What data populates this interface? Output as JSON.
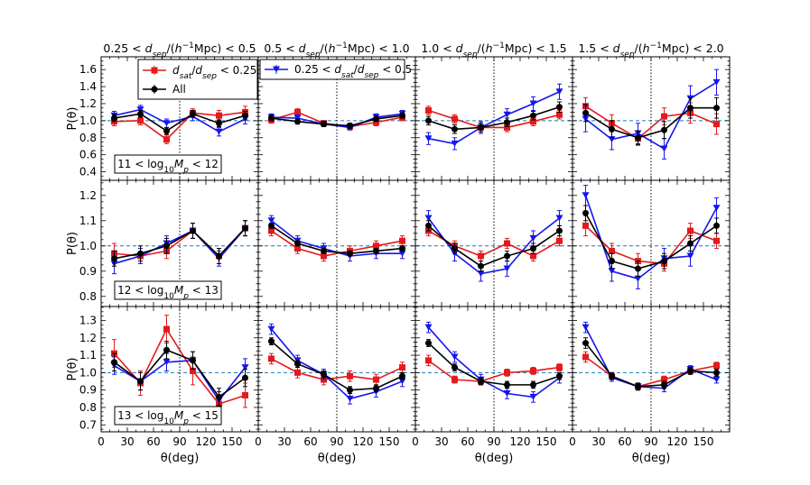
{
  "chart_data": {
    "type": "line",
    "ylabel": "P(θ)",
    "xlabel": "θ(deg)",
    "x": [
      15,
      45,
      75,
      105,
      135,
      165
    ],
    "xlim": [
      0,
      180
    ],
    "xticks": [
      0,
      30,
      60,
      90,
      120,
      150
    ],
    "vline_x": 90,
    "hline_y": 1.0,
    "grid": false,
    "legend": {
      "placement": "top-left",
      "entries": [
        {
          "series": "red",
          "text": "d_sat/d_sep < 0.25",
          "panel": 0
        },
        {
          "series": "black",
          "text": "All",
          "panel": 0
        },
        {
          "series": "blue",
          "text": "0.25 < d_sat/d_sep < 0.5",
          "panel": 1
        }
      ]
    },
    "colors": {
      "red": "#e41a1c",
      "black": "#000000",
      "blue": "#1515f0",
      "hline": "#1f77b4"
    },
    "columns": [
      "0.25 < d_sep/(h⁻¹Mpc) < 0.5",
      "0.5 < d_sep/(h⁻¹Mpc) < 1.0",
      "1.0 < d_sep/(h⁻¹Mpc) < 1.5",
      "1.5 < d_sep/(h⁻¹Mpc) < 2.0"
    ],
    "rows": [
      {
        "label": "11 < log10 Mp < 12",
        "ylim": [
          0.3,
          1.75
        ],
        "yticks": [
          0.4,
          0.6,
          0.8,
          1.0,
          1.2,
          1.4,
          1.6
        ],
        "panels": [
          {
            "red": [
              0.99,
              1.0,
              0.78,
              1.09,
              1.06,
              1.1
            ],
            "red_err": [
              0.05,
              0.05,
              0.05,
              0.05,
              0.06,
              0.07
            ],
            "black": [
              1.03,
              1.08,
              0.88,
              1.08,
              0.97,
              1.06
            ],
            "black_err": [
              0.04,
              0.04,
              0.04,
              0.04,
              0.04,
              0.05
            ],
            "blue": [
              1.06,
              1.13,
              0.97,
              1.05,
              0.87,
              1.02
            ],
            "blue_err": [
              0.05,
              0.05,
              0.05,
              0.05,
              0.05,
              0.06
            ]
          },
          {
            "red": [
              1.01,
              1.1,
              0.97,
              0.93,
              0.98,
              1.04
            ],
            "red_err": [
              0.04,
              0.04,
              0.03,
              0.03,
              0.04,
              0.04
            ],
            "black": [
              1.03,
              0.99,
              0.96,
              0.94,
              1.02,
              1.06
            ],
            "black_err": [
              0.03,
              0.03,
              0.03,
              0.03,
              0.03,
              0.03
            ],
            "blue": [
              1.04,
              1.03,
              0.96,
              0.92,
              1.04,
              1.08
            ],
            "blue_err": [
              0.04,
              0.04,
              0.03,
              0.03,
              0.04,
              0.04
            ]
          },
          {
            "red": [
              1.12,
              1.02,
              0.92,
              0.92,
              0.99,
              1.07
            ],
            "red_err": [
              0.05,
              0.05,
              0.05,
              0.05,
              0.05,
              0.05
            ],
            "black": [
              1.0,
              0.9,
              0.92,
              0.98,
              1.06,
              1.16
            ],
            "black_err": [
              0.05,
              0.05,
              0.05,
              0.05,
              0.05,
              0.06
            ],
            "blue": [
              0.79,
              0.73,
              0.92,
              1.07,
              1.2,
              1.34
            ],
            "blue_err": [
              0.07,
              0.07,
              0.07,
              0.07,
              0.08,
              0.09
            ]
          },
          {
            "red": [
              1.17,
              0.97,
              0.79,
              1.05,
              1.09,
              0.96
            ],
            "red_err": [
              0.1,
              0.1,
              0.08,
              0.1,
              0.12,
              0.12
            ],
            "black": [
              1.09,
              0.9,
              0.8,
              0.89,
              1.15,
              1.15
            ],
            "black_err": [
              0.1,
              0.1,
              0.08,
              0.1,
              0.12,
              0.12
            ],
            "blue": [
              1.02,
              0.78,
              0.85,
              0.67,
              1.26,
              1.45
            ],
            "blue_err": [
              0.15,
              0.12,
              0.12,
              0.12,
              0.15,
              0.15
            ]
          }
        ]
      },
      {
        "label": "12 < log10 Mp < 13",
        "ylim": [
          0.76,
          1.26
        ],
        "yticks": [
          0.8,
          0.9,
          1.0,
          1.1,
          1.2
        ],
        "panels": [
          {
            "red": [
              0.97,
              0.96,
              0.98,
              1.06,
              0.96,
              1.07
            ],
            "red_err": [
              0.04,
              0.03,
              0.03,
              0.03,
              0.03,
              0.03
            ],
            "black": [
              0.95,
              0.97,
              1.0,
              1.06,
              0.96,
              1.07
            ],
            "black_err": [
              0.03,
              0.03,
              0.03,
              0.03,
              0.03,
              0.03
            ],
            "blue": [
              0.93,
              0.96,
              1.01,
              1.06,
              0.95,
              1.07
            ],
            "blue_err": [
              0.04,
              0.03,
              0.03,
              0.03,
              0.03,
              0.03
            ]
          },
          {
            "red": [
              1.06,
              0.99,
              0.96,
              0.98,
              1.0,
              1.02
            ],
            "red_err": [
              0.02,
              0.02,
              0.02,
              0.02,
              0.02,
              0.02
            ],
            "black": [
              1.08,
              1.01,
              0.98,
              0.97,
              0.98,
              0.99
            ],
            "black_err": [
              0.01,
              0.01,
              0.01,
              0.01,
              0.01,
              0.01
            ],
            "blue": [
              1.1,
              1.02,
              0.99,
              0.96,
              0.97,
              0.97
            ],
            "blue_err": [
              0.02,
              0.02,
              0.02,
              0.02,
              0.02,
              0.02
            ]
          },
          {
            "red": [
              1.06,
              1.0,
              0.96,
              1.01,
              0.96,
              1.02
            ],
            "red_err": [
              0.02,
              0.02,
              0.02,
              0.02,
              0.02,
              0.02
            ],
            "black": [
              1.08,
              0.99,
              0.92,
              0.96,
              0.99,
              1.06
            ],
            "black_err": [
              0.02,
              0.02,
              0.02,
              0.02,
              0.02,
              0.02
            ],
            "blue": [
              1.11,
              0.97,
              0.89,
              0.91,
              1.03,
              1.11
            ],
            "blue_err": [
              0.03,
              0.03,
              0.03,
              0.03,
              0.03,
              0.03
            ]
          },
          {
            "red": [
              1.08,
              0.98,
              0.94,
              0.93,
              1.06,
              1.02
            ],
            "red_err": [
              0.04,
              0.03,
              0.03,
              0.03,
              0.03,
              0.03
            ],
            "black": [
              1.13,
              0.94,
              0.91,
              0.94,
              1.01,
              1.08
            ],
            "black_err": [
              0.03,
              0.03,
              0.03,
              0.03,
              0.03,
              0.03
            ],
            "blue": [
              1.2,
              0.9,
              0.87,
              0.95,
              0.96,
              1.15
            ],
            "blue_err": [
              0.04,
              0.04,
              0.04,
              0.04,
              0.04,
              0.04
            ]
          }
        ]
      },
      {
        "label": "13 < log10 Mp < 15",
        "ylim": [
          0.66,
          1.38
        ],
        "yticks": [
          0.7,
          0.8,
          0.9,
          1.0,
          1.1,
          1.2,
          1.3
        ],
        "panels": [
          {
            "red": [
              1.11,
              0.94,
              1.25,
              1.01,
              0.82,
              0.87
            ],
            "red_err": [
              0.08,
              0.07,
              0.08,
              0.08,
              0.07,
              0.07
            ],
            "black": [
              1.06,
              0.95,
              1.13,
              1.07,
              0.86,
              0.97
            ],
            "black_err": [
              0.05,
              0.05,
              0.05,
              0.05,
              0.05,
              0.05
            ],
            "blue": [
              1.04,
              0.95,
              1.06,
              1.07,
              0.84,
              1.03
            ],
            "blue_err": [
              0.05,
              0.05,
              0.05,
              0.05,
              0.05,
              0.05
            ]
          },
          {
            "red": [
              1.08,
              1.0,
              0.96,
              0.98,
              0.96,
              1.03
            ],
            "red_err": [
              0.03,
              0.03,
              0.03,
              0.03,
              0.03,
              0.03
            ],
            "black": [
              1.18,
              1.05,
              0.99,
              0.9,
              0.91,
              0.98
            ],
            "black_err": [
              0.02,
              0.02,
              0.02,
              0.02,
              0.02,
              0.02
            ],
            "blue": [
              1.25,
              1.07,
              0.99,
              0.85,
              0.89,
              0.95
            ],
            "blue_err": [
              0.03,
              0.03,
              0.03,
              0.03,
              0.03,
              0.03
            ]
          },
          {
            "red": [
              1.07,
              0.96,
              0.95,
              1.0,
              1.01,
              1.03
            ],
            "red_err": [
              0.03,
              0.02,
              0.02,
              0.02,
              0.02,
              0.02
            ],
            "black": [
              1.17,
              1.03,
              0.95,
              0.93,
              0.93,
              0.98
            ],
            "black_err": [
              0.02,
              0.02,
              0.02,
              0.02,
              0.02,
              0.02
            ],
            "blue": [
              1.26,
              1.09,
              0.96,
              0.88,
              0.86,
              0.97
            ],
            "blue_err": [
              0.03,
              0.03,
              0.03,
              0.03,
              0.03,
              0.03
            ]
          },
          {
            "red": [
              1.09,
              0.98,
              0.92,
              0.96,
              1.01,
              1.04
            ],
            "red_err": [
              0.03,
              0.02,
              0.02,
              0.02,
              0.02,
              0.02
            ],
            "black": [
              1.17,
              0.98,
              0.92,
              0.93,
              1.01,
              1.0
            ],
            "black_err": [
              0.03,
              0.02,
              0.02,
              0.02,
              0.02,
              0.02
            ],
            "blue": [
              1.26,
              0.97,
              0.92,
              0.91,
              1.02,
              0.96
            ],
            "blue_err": [
              0.03,
              0.02,
              0.02,
              0.02,
              0.02,
              0.02
            ]
          }
        ]
      }
    ]
  }
}
